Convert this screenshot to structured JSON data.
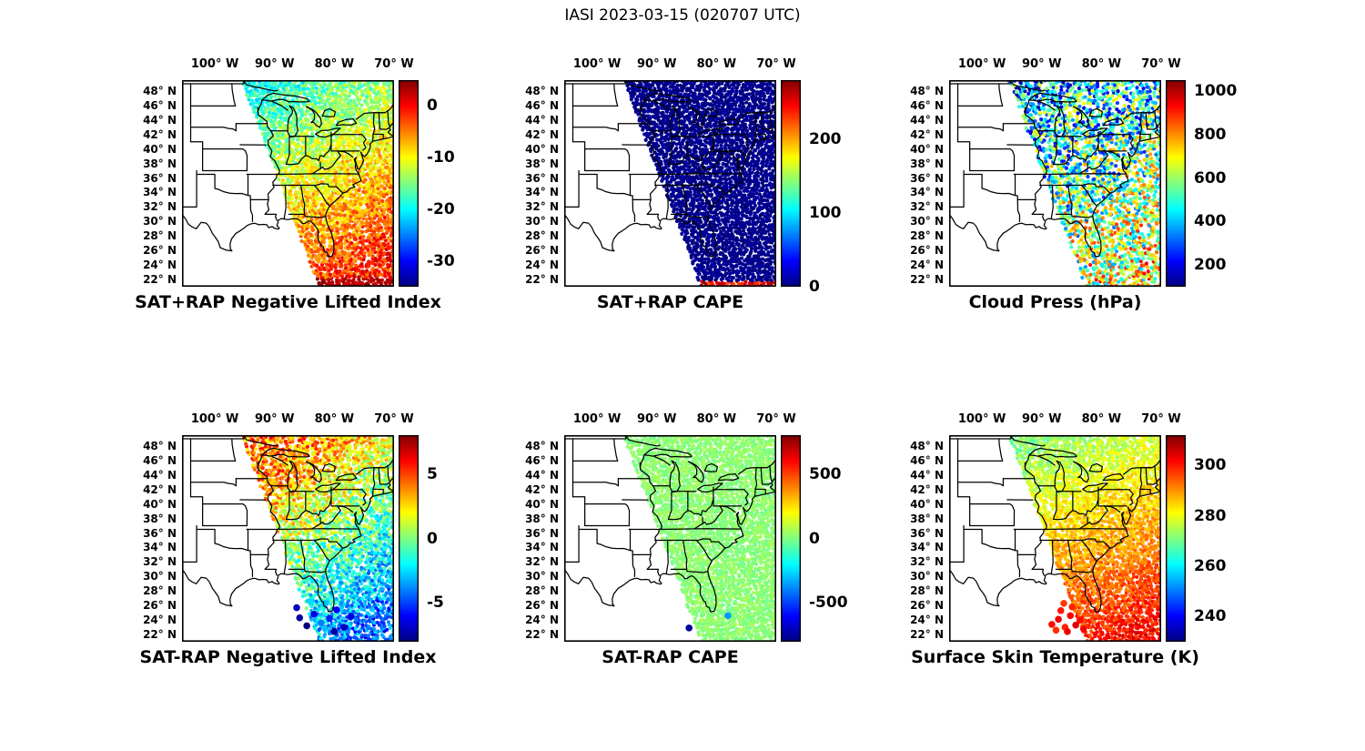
{
  "figure_title": "IASI 2023-03-15 (020707 UTC)",
  "chart_data": {
    "type": "scatter",
    "description": "Six lon/lat map panels of IASI satellite sounding retrievals over the eastern United States, each with a jet colorbar. A diagonal satellite swath of colored dots covers the eastern part of each map.",
    "map_extent": {
      "lon_min": -105.5,
      "lon_max": -70.0,
      "lat_min": 21.0,
      "lat_max": 49.5
    },
    "lon_ticks": [
      {
        "value": -100,
        "label": "100° W"
      },
      {
        "value": -90,
        "label": "90° W"
      },
      {
        "value": -80,
        "label": "80° W"
      },
      {
        "value": -70,
        "label": "70° W"
      }
    ],
    "lat_ticks": [
      {
        "value": 48,
        "label": "48° N"
      },
      {
        "value": 46,
        "label": "46° N"
      },
      {
        "value": 44,
        "label": "44° N"
      },
      {
        "value": 42,
        "label": "42° N"
      },
      {
        "value": 40,
        "label": "40° N"
      },
      {
        "value": 38,
        "label": "38° N"
      },
      {
        "value": 36,
        "label": "36° N"
      },
      {
        "value": 34,
        "label": "34° N"
      },
      {
        "value": 32,
        "label": "32° N"
      },
      {
        "value": 30,
        "label": "30° N"
      },
      {
        "value": 28,
        "label": "28° N"
      },
      {
        "value": 26,
        "label": "26° N"
      },
      {
        "value": 24,
        "label": "24° N"
      },
      {
        "value": 22,
        "label": "22° N"
      }
    ],
    "swath_left_edge": {
      "top": {
        "lon": -95.5,
        "lat": 49.5
      },
      "bottom": {
        "lon": -82.5,
        "lat": 21.0
      }
    },
    "panels": [
      {
        "title": "SAT+RAP Negative Lifted Index",
        "colorbar": {
          "vmin": -35,
          "vmax": 5,
          "ticks": [
            0,
            -10,
            -20,
            -30
          ]
        },
        "field": {
          "type": "gradient",
          "from": {
            "fx": 0.45,
            "fy": 0.0,
            "value": -19
          },
          "to": {
            "fx": 1.0,
            "fy": 0.85,
            "value": -1
          },
          "noise": 4,
          "dropout": 0.03,
          "bottom_strip": {
            "below_lat": 22.0,
            "value": 3,
            "noise": 1.5
          }
        },
        "outlier_dots": []
      },
      {
        "title": "SAT+RAP CAPE",
        "colorbar": {
          "vmin": 0,
          "vmax": 280,
          "ticks": [
            200,
            100,
            0
          ]
        },
        "field": {
          "type": "gradient",
          "from": {
            "fx": 0.4,
            "fy": 0.0,
            "value": 4
          },
          "to": {
            "fx": 1.0,
            "fy": 1.0,
            "value": 4
          },
          "noise": 6,
          "dropout": 0.0,
          "bottom_strip": {
            "below_lat": 21.9,
            "value": 250,
            "noise": 28
          }
        },
        "outlier_dots": []
      },
      {
        "title": "Cloud Press (hPa)",
        "colorbar": {
          "vmin": 100,
          "vmax": 1050,
          "ticks": [
            1000,
            800,
            600,
            400,
            200
          ]
        },
        "field": {
          "type": "gradient",
          "from": {
            "fx": 0.45,
            "fy": 0.0,
            "value": 380
          },
          "to": {
            "fx": 1.0,
            "fy": 1.0,
            "value": 700
          },
          "noise": 290,
          "dropout": 0.28
        },
        "outlier_dots": []
      },
      {
        "title": "SAT-RAP Negative Lifted Index",
        "colorbar": {
          "vmin": -8,
          "vmax": 8,
          "ticks": [
            5,
            0,
            -5
          ]
        },
        "field": {
          "type": "gradient",
          "from": {
            "fx": 0.45,
            "fy": 0.15,
            "value": 4
          },
          "to": {
            "fx": 1.0,
            "fy": 0.85,
            "value": -4.5
          },
          "noise": 2.2,
          "dropout": 0.12
        },
        "outlier_dots": [
          {
            "lon": -85.8,
            "lat": 24.3,
            "value": -7.5
          },
          {
            "lon": -84.6,
            "lat": 23.2,
            "value": -8
          },
          {
            "lon": -83.4,
            "lat": 24.8,
            "value": -6.5
          },
          {
            "lon": -86.3,
            "lat": 25.7,
            "value": -7
          },
          {
            "lon": -82.2,
            "lat": 23.6,
            "value": -4
          },
          {
            "lon": -80.8,
            "lat": 24.2,
            "value": -5.5
          },
          {
            "lon": -79.6,
            "lat": 25.4,
            "value": -6
          },
          {
            "lon": -78.4,
            "lat": 23.0,
            "value": -7
          },
          {
            "lon": -81.5,
            "lat": 26.3,
            "value": -3
          },
          {
            "lon": -77.2,
            "lat": 24.5,
            "value": -6.5
          },
          {
            "lon": -80.0,
            "lat": 22.4,
            "value": -7.5
          },
          {
            "lon": -84.0,
            "lat": 26.6,
            "value": -2.5
          }
        ]
      },
      {
        "title": "SAT-RAP CAPE",
        "colorbar": {
          "vmin": -800,
          "vmax": 800,
          "ticks": [
            500,
            0,
            -500
          ]
        },
        "field": {
          "type": "gradient",
          "from": {
            "fx": 0.0,
            "fy": 0.0,
            "value": 20
          },
          "to": {
            "fx": 1.0,
            "fy": 1.0,
            "value": 20
          },
          "noise": 45,
          "dropout": 0.04
        },
        "outlier_dots": [
          {
            "lon": -84.6,
            "lat": 22.9,
            "value": -760
          },
          {
            "lon": -78.1,
            "lat": 24.6,
            "value": -350
          }
        ]
      },
      {
        "title": "Surface Skin Temperature (K)",
        "colorbar": {
          "vmin": 230,
          "vmax": 312,
          "ticks": [
            300,
            280,
            260,
            240
          ]
        },
        "field": {
          "type": "gradient",
          "from": {
            "fx": 0.5,
            "fy": 0.0,
            "value": 272
          },
          "to": {
            "fx": 0.95,
            "fy": 1.0,
            "value": 303
          },
          "noise": 5,
          "dropout": 0.06
        },
        "outlier_dots": [
          {
            "lon": -88.3,
            "lat": 23.4,
            "value": 301
          },
          {
            "lon": -87.2,
            "lat": 24.1,
            "value": 303
          },
          {
            "lon": -86.1,
            "lat": 23.0,
            "value": 299
          },
          {
            "lon": -85.2,
            "lat": 24.6,
            "value": 302
          },
          {
            "lon": -84.3,
            "lat": 23.3,
            "value": 304
          },
          {
            "lon": -86.8,
            "lat": 25.3,
            "value": 300
          },
          {
            "lon": -85.7,
            "lat": 22.4,
            "value": 303
          },
          {
            "lon": -83.6,
            "lat": 24.0,
            "value": 301
          },
          {
            "lon": -87.6,
            "lat": 22.6,
            "value": 298
          },
          {
            "lon": -84.9,
            "lat": 25.8,
            "value": 299
          },
          {
            "lon": -83.0,
            "lat": 22.8,
            "value": 302
          },
          {
            "lon": -86.3,
            "lat": 26.3,
            "value": 297
          }
        ]
      }
    ]
  }
}
